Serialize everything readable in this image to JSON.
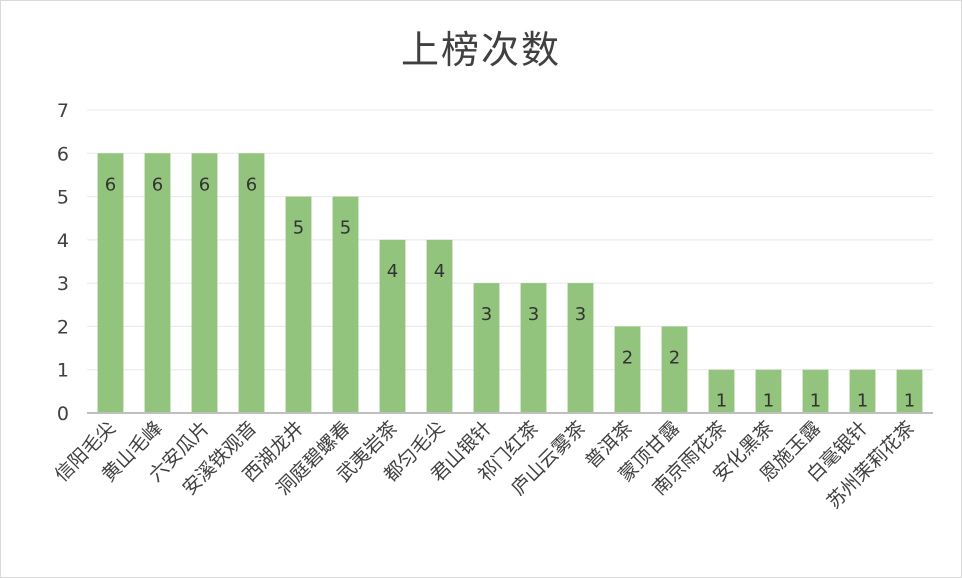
{
  "chart_data": {
    "type": "bar",
    "title": "上榜次数",
    "xlabel": "",
    "ylabel": "",
    "ylim": [
      0,
      7
    ],
    "yticks": [
      0,
      1,
      2,
      3,
      4,
      5,
      6,
      7
    ],
    "grid": true,
    "legend": "none",
    "bar_color": "#93c47d",
    "categories": [
      "信阳毛尖",
      "黄山毛峰",
      "六安瓜片",
      "安溪铁观音",
      "西湖龙井",
      "洞庭碧螺春",
      "武夷岩茶",
      "都匀毛尖",
      "君山银针",
      "祁门红茶",
      "庐山云雾茶",
      "普洱茶",
      "蒙顶甘露",
      "南京雨花茶",
      "安化黑茶",
      "恩施玉露",
      "白毫银针",
      "苏州茉莉花茶"
    ],
    "values": [
      6,
      6,
      6,
      6,
      5,
      5,
      4,
      4,
      3,
      3,
      3,
      2,
      2,
      1,
      1,
      1,
      1,
      1
    ],
    "data_labels": true
  }
}
